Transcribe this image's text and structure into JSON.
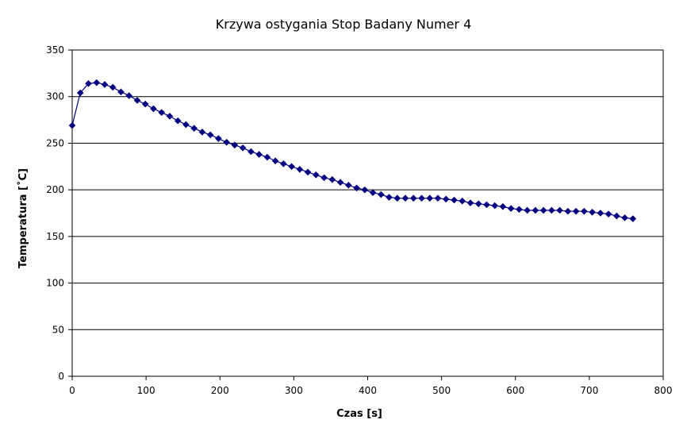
{
  "chart_data": {
    "type": "line",
    "title": "Krzywa ostygania Stop Badany Numer 4",
    "xlabel": "Czas [s]",
    "ylabel": "Temperatura [˚C]",
    "xlim": [
      0,
      800
    ],
    "ylim": [
      0,
      350
    ],
    "xticks": [
      0,
      100,
      200,
      300,
      400,
      500,
      600,
      700,
      800
    ],
    "yticks": [
      0,
      50,
      100,
      150,
      200,
      250,
      300,
      350
    ],
    "grid": "horizontal",
    "legend": "none",
    "series": [
      {
        "color": "#000080",
        "marker": "diamond",
        "x": [
          0,
          11,
          22,
          33,
          44,
          55,
          66,
          77,
          88,
          99,
          110,
          121,
          132,
          143,
          154,
          165,
          176,
          187,
          198,
          209,
          220,
          231,
          242,
          253,
          264,
          275,
          286,
          297,
          308,
          319,
          330,
          341,
          352,
          363,
          374,
          385,
          396,
          407,
          418,
          429,
          440,
          451,
          462,
          473,
          484,
          495,
          506,
          517,
          528,
          539,
          550,
          561,
          572,
          583,
          594,
          605,
          616,
          627,
          638,
          649,
          660,
          671,
          682,
          693,
          704,
          715,
          726,
          737,
          748,
          759
        ],
        "y": [
          269,
          304,
          314,
          315,
          313,
          310,
          305,
          301,
          296,
          292,
          287,
          283,
          279,
          274,
          270,
          266,
          262,
          259,
          255,
          251,
          248,
          245,
          241,
          238,
          235,
          231,
          228,
          225,
          222,
          219,
          216,
          213,
          211,
          208,
          205,
          202,
          200,
          197,
          195,
          192,
          191,
          191,
          191,
          191,
          191,
          191,
          190,
          189,
          188,
          186,
          185,
          184,
          183,
          182,
          180,
          179,
          178,
          178,
          178,
          178,
          178,
          177,
          177,
          177,
          176,
          175,
          174,
          172,
          170,
          169
        ]
      }
    ]
  }
}
